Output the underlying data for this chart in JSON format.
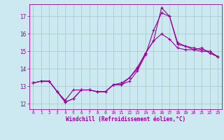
{
  "xlabel": "Windchill (Refroidissement éolien,°C)",
  "bg_color": "#cce8f0",
  "grid_color": "#aacccc",
  "line_color": "#990099",
  "xlim": [
    -0.5,
    23.5
  ],
  "ylim": [
    11.7,
    17.7
  ],
  "yticks": [
    12,
    13,
    14,
    15,
    16,
    17
  ],
  "xticks": [
    0,
    1,
    2,
    3,
    4,
    5,
    6,
    7,
    8,
    9,
    10,
    11,
    12,
    13,
    14,
    15,
    16,
    17,
    18,
    19,
    20,
    21,
    22,
    23
  ],
  "series1_x": [
    0,
    1,
    2,
    3,
    4,
    5,
    6,
    7,
    8,
    9,
    10,
    11,
    12,
    13,
    14,
    15,
    16,
    17,
    18,
    19,
    20,
    21,
    22,
    23
  ],
  "series1_y": [
    13.2,
    13.3,
    13.3,
    12.7,
    12.2,
    12.8,
    12.8,
    12.8,
    12.7,
    12.7,
    13.1,
    13.1,
    13.3,
    13.9,
    14.8,
    16.2,
    17.2,
    17.0,
    15.4,
    15.3,
    15.1,
    15.2,
    14.9,
    14.7
  ],
  "series2_x": [
    0,
    1,
    2,
    3,
    4,
    5,
    6,
    7,
    8,
    9,
    10,
    11,
    12,
    13,
    14,
    15,
    16,
    17,
    18,
    19,
    20,
    21,
    22,
    23
  ],
  "series2_y": [
    13.2,
    13.3,
    13.3,
    12.7,
    12.1,
    12.3,
    12.8,
    12.8,
    12.7,
    12.7,
    13.1,
    13.2,
    13.5,
    14.1,
    14.9,
    15.6,
    17.5,
    17.0,
    15.5,
    15.3,
    15.2,
    15.1,
    15.0,
    14.7
  ],
  "series3_x": [
    0,
    1,
    2,
    3,
    4,
    5,
    6,
    7,
    8,
    9,
    10,
    11,
    12,
    13,
    14,
    15,
    16,
    17,
    18,
    19,
    20,
    21,
    22,
    23
  ],
  "series3_y": [
    13.2,
    13.3,
    13.3,
    12.7,
    12.1,
    12.3,
    12.8,
    12.8,
    12.7,
    12.7,
    13.1,
    13.1,
    13.5,
    14.0,
    14.9,
    15.6,
    16.0,
    15.7,
    15.2,
    15.1,
    15.1,
    15.0,
    15.0,
    14.7
  ]
}
